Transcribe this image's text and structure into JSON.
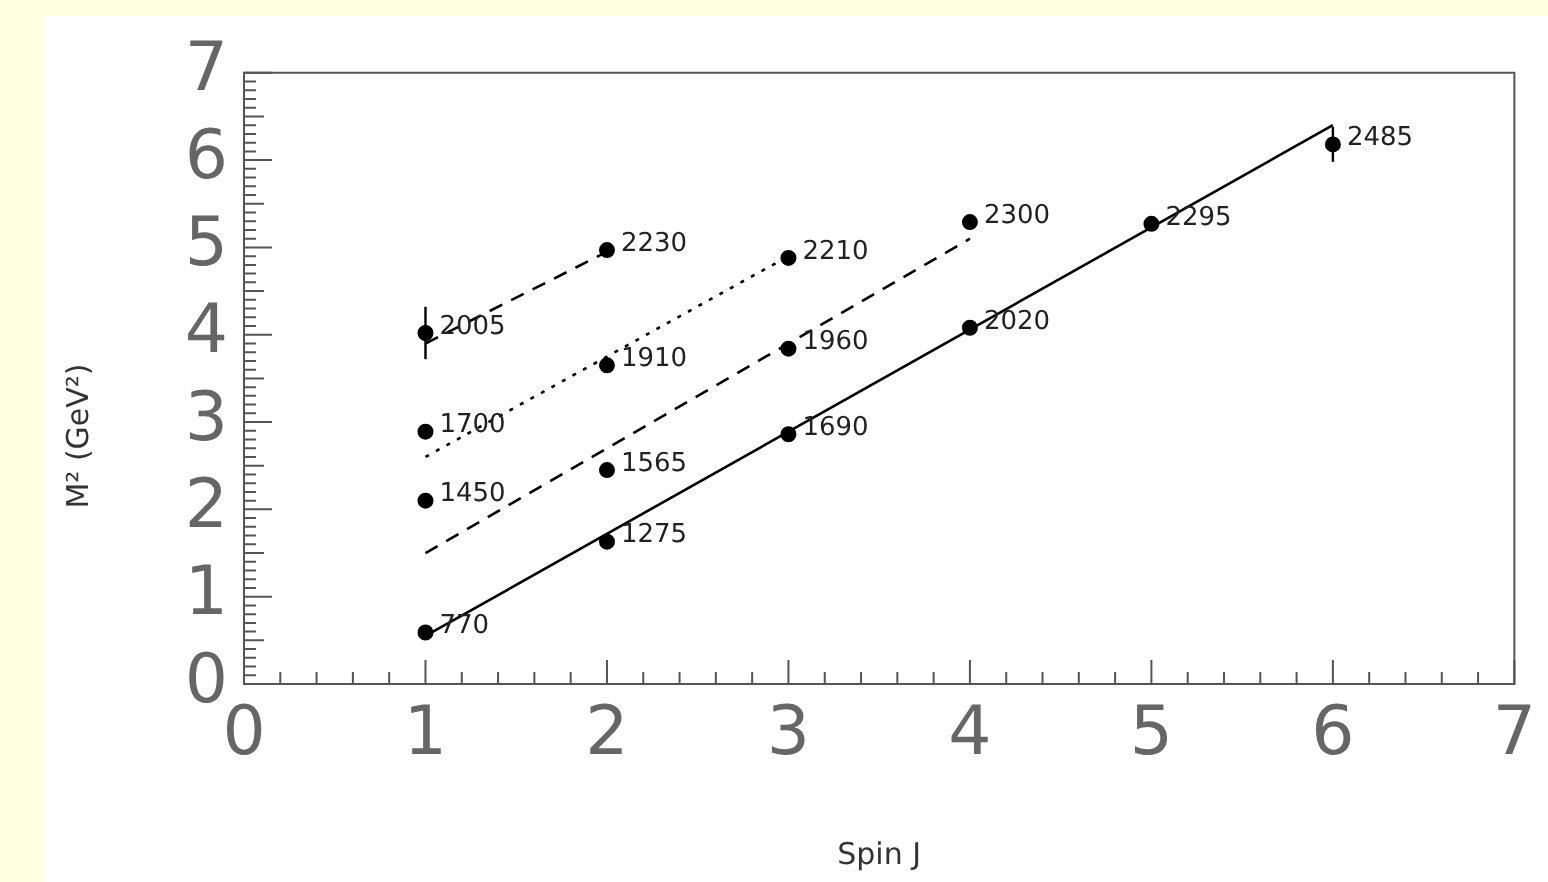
{
  "chart_data": {
    "type": "scatter",
    "xlabel": "Spin J",
    "ylabel": "M² (GeV²)",
    "xlim": [
      0,
      7
    ],
    "xticks": [
      0,
      1,
      2,
      3,
      4,
      5,
      6,
      7
    ],
    "ylim": [
      0,
      7
    ],
    "yticks": [
      0,
      1,
      2,
      3,
      4,
      5,
      6,
      7
    ],
    "grid": false,
    "legend": false,
    "marker": "circle",
    "series": [
      {
        "type": "line",
        "color": "#000000",
        "line_style": "solid",
        "marker": "none",
        "x": [
          1,
          6
        ],
        "values": [
          0.55,
          6.4
        ]
      },
      {
        "type": "line",
        "color": "#000000",
        "line_style": "dashed",
        "marker": "none",
        "x": [
          1,
          4
        ],
        "values": [
          1.5,
          5.1
        ]
      },
      {
        "type": "line",
        "color": "#000000",
        "line_style": "dotted",
        "marker": "none",
        "x": [
          1,
          3
        ],
        "values": [
          2.6,
          4.9
        ]
      },
      {
        "type": "line",
        "color": "#000000",
        "line_style": "dashed",
        "marker": "none",
        "x": [
          1,
          2
        ],
        "values": [
          3.9,
          4.95
        ]
      },
      {
        "color": "#000000",
        "x": [
          1,
          2,
          3,
          4,
          5,
          6,
          1,
          2,
          3,
          4,
          1,
          2,
          3,
          1,
          2
        ],
        "values": [
          0.59,
          1.63,
          2.86,
          4.08,
          5.27,
          6.18,
          2.1,
          2.45,
          3.84,
          5.29,
          2.89,
          3.65,
          4.88,
          4.02,
          4.97
        ],
        "errors": [
          null,
          null,
          null,
          null,
          null,
          0.2,
          null,
          null,
          null,
          null,
          null,
          null,
          null,
          0.3,
          null
        ]
      }
    ],
    "annotations": [
      {
        "text": "770",
        "x": 1,
        "y": 0.59
      },
      {
        "text": "1275",
        "x": 2,
        "y": 1.63
      },
      {
        "text": "1690",
        "x": 3,
        "y": 2.86
      },
      {
        "text": "2020",
        "x": 4,
        "y": 4.08
      },
      {
        "text": "2295",
        "x": 5,
        "y": 5.27
      },
      {
        "text": "2485",
        "x": 6,
        "y": 6.18
      },
      {
        "text": "1450",
        "x": 1,
        "y": 2.1
      },
      {
        "text": "1565",
        "x": 2,
        "y": 2.45
      },
      {
        "text": "1960",
        "x": 3,
        "y": 3.84
      },
      {
        "text": "2300",
        "x": 4,
        "y": 5.29
      },
      {
        "text": "1700",
        "x": 1,
        "y": 2.89
      },
      {
        "text": "1910",
        "x": 2,
        "y": 3.65
      },
      {
        "text": "2210",
        "x": 3,
        "y": 4.88
      },
      {
        "text": "2005",
        "x": 1,
        "y": 4.02
      },
      {
        "text": "2230",
        "x": 2,
        "y": 4.97
      }
    ]
  }
}
